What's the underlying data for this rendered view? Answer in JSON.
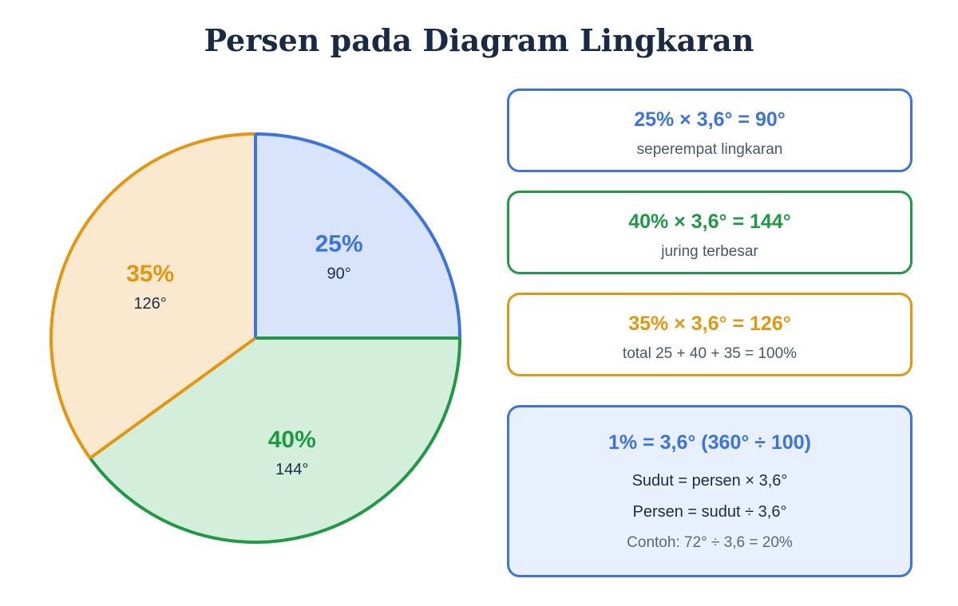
{
  "title": "Persen pada Diagram Lingkaran",
  "chart_data": {
    "type": "pie",
    "slices": [
      {
        "percent": 25,
        "label": "25%",
        "degrees_label": "90°",
        "color": "#3b74e0",
        "fill": "#d7e4fb"
      },
      {
        "percent": 40,
        "label": "40%",
        "degrees_label": "144°",
        "color": "#1e9a45",
        "fill": "#d3eedb"
      },
      {
        "percent": 35,
        "label": "35%",
        "degrees_label": "126°",
        "color": "#e3960f",
        "fill": "#fbe9cf"
      }
    ],
    "start_angle": "12 o'clock",
    "direction": "clockwise"
  },
  "cards": [
    {
      "equation": "25% × 3,6° = 90°",
      "note": "seperempat lingkaran",
      "color": "#3b74e0"
    },
    {
      "equation": "40% × 3,6° = 144°",
      "note": "juring terbesar",
      "color": "#1e9a45"
    },
    {
      "equation": "35% × 3,6° = 126°",
      "note": "total 25 + 40 + 35 = 100%",
      "color": "#e3960f"
    }
  ],
  "info_card": {
    "equation": "1% = 3,6° (360° ÷ 100)",
    "rule1": "Sudut = persen × 3,6°",
    "rule2": "Persen = sudut ÷ 3,6°",
    "example": "Contoh: 72° ÷ 3,6 = 20%",
    "color": "#3b74e0"
  }
}
